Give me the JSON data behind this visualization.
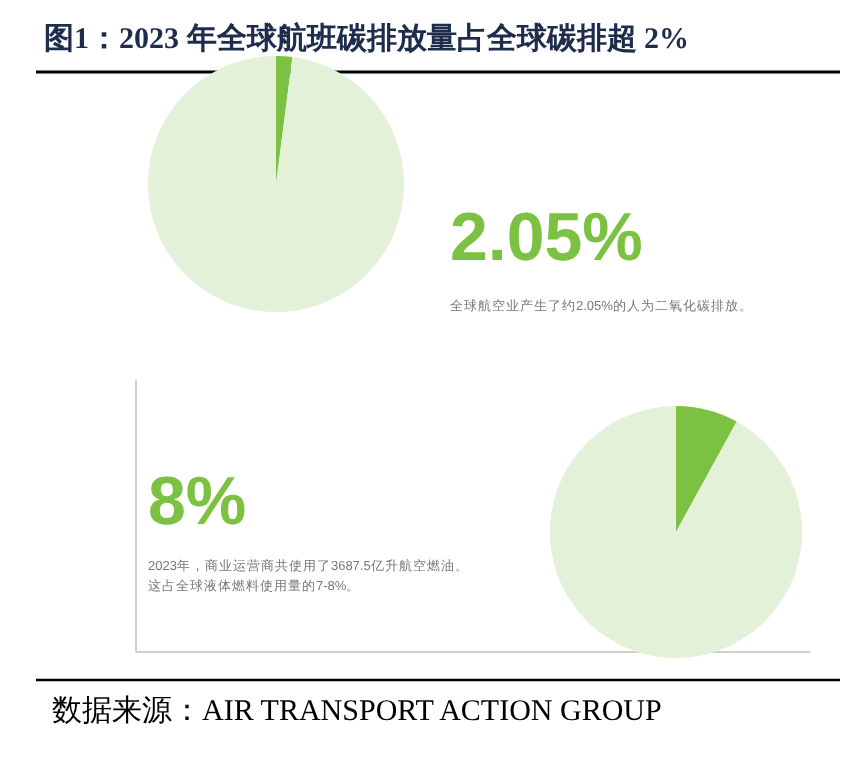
{
  "chart_data": [
    {
      "type": "pie",
      "title": "图1：2023 年全球航班碳排放量占全球碳排超 2%",
      "categories": [
        null,
        null
      ],
      "values": [
        2.05,
        97.95
      ],
      "colors": [
        "#7dc142",
        "#e2f1d8"
      ],
      "annotations": [
        "2.05%",
        "全球航空业产生了约2.05%的人为二氧化碳排放。"
      ]
    },
    {
      "type": "pie",
      "categories": [
        null,
        null
      ],
      "values": [
        8,
        92
      ],
      "colors": [
        "#7dc142",
        "#e2f1d8"
      ],
      "annotations": [
        "8%",
        "2023年，商业运营商共使用了3687.5亿升航空燃油。",
        "这占全球液体燃料使用量的7-8%。",
        "数据来源：AIR TRANSPORT ACTION GROUP"
      ]
    }
  ]
}
